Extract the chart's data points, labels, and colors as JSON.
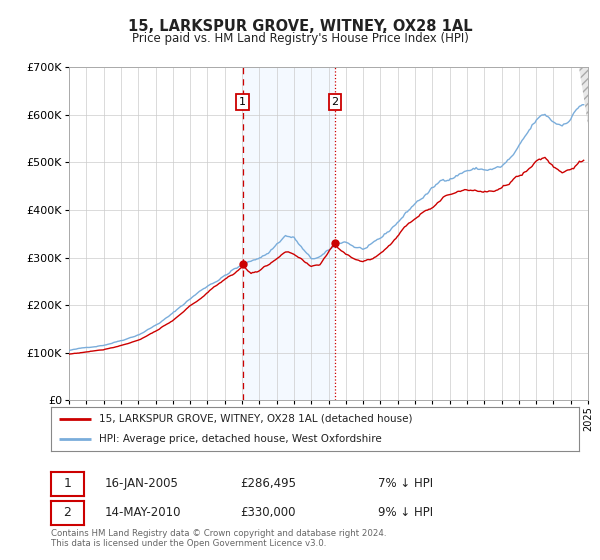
{
  "title": "15, LARKSPUR GROVE, WITNEY, OX28 1AL",
  "subtitle": "Price paid vs. HM Land Registry's House Price Index (HPI)",
  "legend_label_red": "15, LARKSPUR GROVE, WITNEY, OX28 1AL (detached house)",
  "legend_label_blue": "HPI: Average price, detached house, West Oxfordshire",
  "transaction1_date": "16-JAN-2005",
  "transaction1_price": "£286,495",
  "transaction1_hpi": "7% ↓ HPI",
  "transaction2_date": "14-MAY-2010",
  "transaction2_price": "£330,000",
  "transaction2_hpi": "9% ↓ HPI",
  "footer_line1": "Contains HM Land Registry data © Crown copyright and database right 2024.",
  "footer_line2": "This data is licensed under the Open Government Licence v3.0.",
  "red_color": "#cc0000",
  "blue_color": "#7aaddb",
  "shade_color": "#ddeeff",
  "grid_color": "#cccccc",
  "background_color": "#ffffff",
  "transaction1_x": 2005.04,
  "transaction2_x": 2010.37,
  "transaction1_y": 286495,
  "transaction2_y": 330000,
  "ylim_min": 0,
  "ylim_max": 700000,
  "xlim_min": 1995,
  "xlim_max": 2025,
  "yticks": [
    0,
    100000,
    200000,
    300000,
    400000,
    500000,
    600000,
    700000
  ],
  "ytick_labels": [
    "£0",
    "£100K",
    "£200K",
    "£300K",
    "£400K",
    "£500K",
    "£600K",
    "£700K"
  ],
  "xticks": [
    1995,
    1996,
    1997,
    1998,
    1999,
    2000,
    2001,
    2002,
    2003,
    2004,
    2005,
    2006,
    2007,
    2008,
    2009,
    2010,
    2011,
    2012,
    2013,
    2014,
    2015,
    2016,
    2017,
    2018,
    2019,
    2020,
    2021,
    2022,
    2023,
    2024,
    2025
  ]
}
